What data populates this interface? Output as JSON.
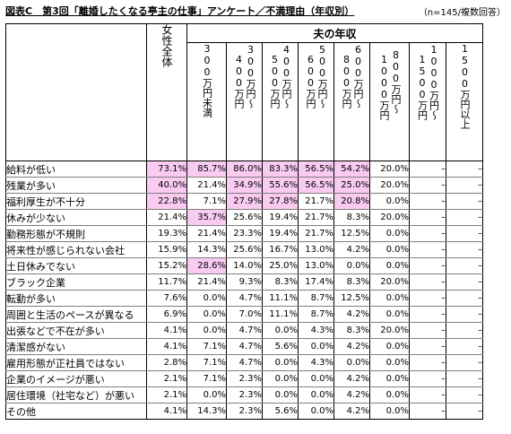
{
  "title": "図表C　第3回「離婚したくなる亭主の仕事」アンケート／不満理由（年収別）",
  "note": "（n=145/複数回答）",
  "group_header": "夫の年収",
  "columns": [
    "女性全体",
    "300万円未満",
    "300〜400万円",
    "400〜500万円",
    "500〜600万円",
    "600〜800万円",
    "800〜1000万円",
    "1000〜1500万円",
    "1500万円以上"
  ],
  "column_stacks": [
    [
      "女性全体"
    ],
    [
      "300万円未満"
    ],
    [
      "300万円〜",
      "400万円"
    ],
    [
      "400万円〜",
      "500万円"
    ],
    [
      "500万円〜",
      "600万円"
    ],
    [
      "600万円〜",
      "800万円"
    ],
    [
      "800万円〜",
      "1000万円"
    ],
    [
      "1000万円〜",
      "1500万円"
    ],
    [
      "1500万円以上"
    ]
  ],
  "highlight_color": "#f9cbf1",
  "rows": [
    {
      "label": "給料が低い",
      "values": [
        "73.1%",
        "85.7%",
        "86.0%",
        "83.3%",
        "56.5%",
        "54.2%",
        "20.0%",
        "–",
        "–"
      ],
      "hl": [
        1,
        1,
        1,
        1,
        1,
        1,
        0,
        0,
        0
      ]
    },
    {
      "label": "残業が多い",
      "values": [
        "40.0%",
        "21.4%",
        "34.9%",
        "55.6%",
        "56.5%",
        "25.0%",
        "20.0%",
        "–",
        "–"
      ],
      "hl": [
        1,
        0,
        1,
        1,
        1,
        1,
        0,
        0,
        0
      ]
    },
    {
      "label": "福利厚生が不十分",
      "values": [
        "22.8%",
        "7.1%",
        "27.9%",
        "27.8%",
        "21.7%",
        "20.8%",
        "0.0%",
        "–",
        "–"
      ],
      "hl": [
        1,
        0,
        1,
        1,
        0,
        1,
        0,
        0,
        0
      ]
    },
    {
      "label": "休みが少ない",
      "values": [
        "21.4%",
        "35.7%",
        "25.6%",
        "19.4%",
        "21.7%",
        "8.3%",
        "20.0%",
        "–",
        "–"
      ],
      "hl": [
        0,
        1,
        0,
        0,
        0,
        0,
        0,
        0,
        0
      ]
    },
    {
      "label": "勤務形態が不規則",
      "values": [
        "19.3%",
        "21.4%",
        "23.3%",
        "19.4%",
        "21.7%",
        "12.5%",
        "0.0%",
        "–",
        "–"
      ],
      "hl": [
        0,
        0,
        0,
        0,
        0,
        0,
        0,
        0,
        0
      ]
    },
    {
      "label": "将来性が感じられない会社",
      "values": [
        "15.9%",
        "14.3%",
        "25.6%",
        "16.7%",
        "13.0%",
        "4.2%",
        "0.0%",
        "–",
        "–"
      ],
      "hl": [
        0,
        0,
        0,
        0,
        0,
        0,
        0,
        0,
        0
      ]
    },
    {
      "label": "土日休みでない",
      "values": [
        "15.2%",
        "28.6%",
        "14.0%",
        "25.0%",
        "13.0%",
        "0.0%",
        "0.0%",
        "–",
        "–"
      ],
      "hl": [
        0,
        1,
        0,
        0,
        0,
        0,
        0,
        0,
        0
      ]
    },
    {
      "label": "ブラック企業",
      "values": [
        "11.7%",
        "21.4%",
        "9.3%",
        "8.3%",
        "17.4%",
        "8.3%",
        "20.0%",
        "–",
        "–"
      ],
      "hl": [
        0,
        0,
        0,
        0,
        0,
        0,
        0,
        0,
        0
      ]
    },
    {
      "label": "転勤が多い",
      "values": [
        "7.6%",
        "0.0%",
        "4.7%",
        "11.1%",
        "8.7%",
        "12.5%",
        "0.0%",
        "–",
        "–"
      ],
      "hl": [
        0,
        0,
        0,
        0,
        0,
        0,
        0,
        0,
        0
      ]
    },
    {
      "label": "周囲と生活のペースが異なる",
      "values": [
        "6.9%",
        "0.0%",
        "7.0%",
        "11.1%",
        "8.7%",
        "4.2%",
        "0.0%",
        "–",
        "–"
      ],
      "hl": [
        0,
        0,
        0,
        0,
        0,
        0,
        0,
        0,
        0
      ]
    },
    {
      "label": "出張などで不在が多い",
      "values": [
        "4.1%",
        "0.0%",
        "4.7%",
        "0.0%",
        "4.3%",
        "8.3%",
        "20.0%",
        "–",
        "–"
      ],
      "hl": [
        0,
        0,
        0,
        0,
        0,
        0,
        0,
        0,
        0
      ]
    },
    {
      "label": "清潔感がない",
      "values": [
        "4.1%",
        "7.1%",
        "4.7%",
        "5.6%",
        "0.0%",
        "4.2%",
        "0.0%",
        "–",
        "–"
      ],
      "hl": [
        0,
        0,
        0,
        0,
        0,
        0,
        0,
        0,
        0
      ]
    },
    {
      "label": "雇用形態が正社員ではない",
      "values": [
        "2.8%",
        "7.1%",
        "4.7%",
        "0.0%",
        "4.3%",
        "0.0%",
        "0.0%",
        "–",
        "–"
      ],
      "hl": [
        0,
        0,
        0,
        0,
        0,
        0,
        0,
        0,
        0
      ]
    },
    {
      "label": "企業のイメージが悪い",
      "values": [
        "2.1%",
        "7.1%",
        "2.3%",
        "0.0%",
        "0.0%",
        "4.2%",
        "0.0%",
        "–",
        "–"
      ],
      "hl": [
        0,
        0,
        0,
        0,
        0,
        0,
        0,
        0,
        0
      ]
    },
    {
      "label": "居住環境（社宅など）が悪い",
      "values": [
        "2.1%",
        "0.0%",
        "2.3%",
        "0.0%",
        "0.0%",
        "4.2%",
        "0.0%",
        "–",
        "–"
      ],
      "hl": [
        0,
        0,
        0,
        0,
        0,
        0,
        0,
        0,
        0
      ]
    },
    {
      "label": "その他",
      "values": [
        "4.1%",
        "14.3%",
        "2.3%",
        "5.6%",
        "0.0%",
        "4.2%",
        "0.0%",
        "–",
        "–"
      ],
      "hl": [
        0,
        0,
        0,
        0,
        0,
        0,
        0,
        0,
        0
      ]
    }
  ]
}
